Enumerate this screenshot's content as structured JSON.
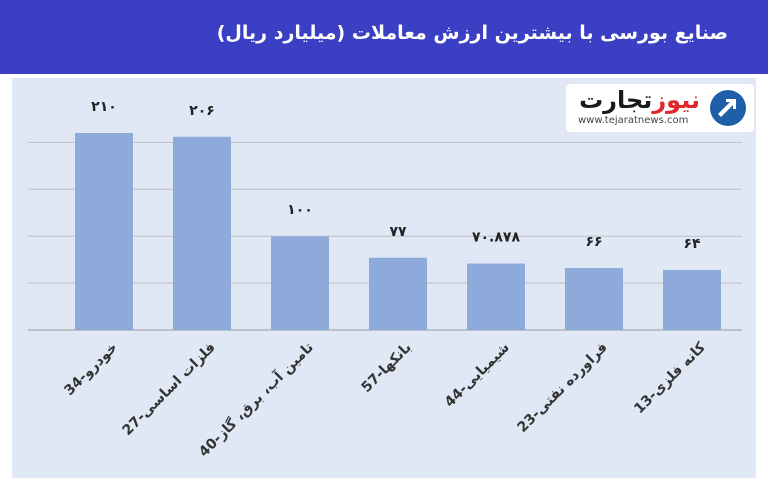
{
  "header": {
    "title": "صنایع بورسی با بیشترین ارزش معاملات  (میلیارد ریال)"
  },
  "logo": {
    "brand_part1": "تجارت",
    "brand_part2": "نیوز",
    "url": "www.tejaratnews.com",
    "icon": "tejaratnews-logo-icon"
  },
  "colors": {
    "header_bg": "#3a3fc4",
    "panel_bg": "#dfe8f4",
    "bar": "#8eaadb",
    "accent": "#e3262b"
  },
  "chart_data": {
    "type": "bar",
    "categories": [
      "34-خودرو",
      "27-فلزات اساسی",
      "40-تامین آب، برق، گاز",
      "57-بانکها",
      "44-شیمیایی",
      "23-فراورده نفتی",
      "13-کانه فلزی"
    ],
    "values": [
      210,
      206,
      100,
      77,
      70.878,
      66,
      64
    ],
    "value_labels": [
      "۲۱۰",
      "۲۰۶",
      "۱۰۰",
      "۷۷",
      "۷۰.۸۷۸",
      "۶۶",
      "۶۴"
    ],
    "ylim": [
      0,
      210
    ],
    "grid": true,
    "xlabel": "",
    "ylabel": ""
  }
}
